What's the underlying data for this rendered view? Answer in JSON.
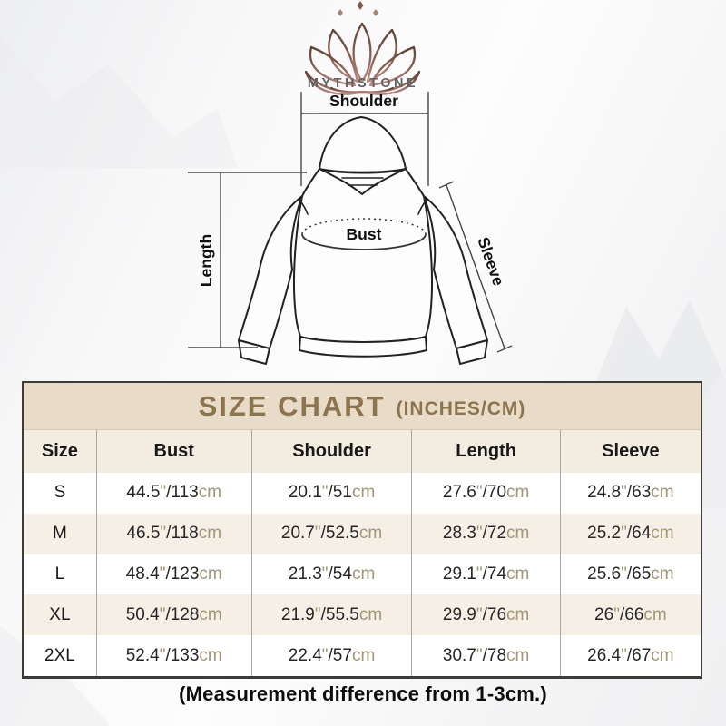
{
  "brand": {
    "name": "MYTHSTONE"
  },
  "diagram": {
    "labels": {
      "shoulder": "Shoulder",
      "length": "Length",
      "bust": "Bust",
      "sleeve": "Sleeve"
    }
  },
  "size_chart": {
    "title": "SIZE CHART",
    "title_suffix": "(INCHES/CM)",
    "unit": {
      "inch_mark": "\"",
      "separator": "/",
      "cm_label": "cm"
    }
  },
  "chart_data": {
    "type": "table",
    "title": "SIZE CHART (INCHES/CM)",
    "columns": [
      "Size",
      "Bust",
      "Shoulder",
      "Length",
      "Sleeve"
    ],
    "units": "inches/cm",
    "rows": [
      {
        "size": "S",
        "bust": {
          "in": 44.5,
          "cm": 113
        },
        "shoulder": {
          "in": 20.1,
          "cm": 51
        },
        "length": {
          "in": 27.6,
          "cm": 70
        },
        "sleeve": {
          "in": 24.8,
          "cm": 63
        }
      },
      {
        "size": "M",
        "bust": {
          "in": 46.5,
          "cm": 118
        },
        "shoulder": {
          "in": 20.7,
          "cm": 52.5
        },
        "length": {
          "in": 28.3,
          "cm": 72
        },
        "sleeve": {
          "in": 25.2,
          "cm": 64
        }
      },
      {
        "size": "L",
        "bust": {
          "in": 48.4,
          "cm": 123
        },
        "shoulder": {
          "in": 21.3,
          "cm": 54
        },
        "length": {
          "in": 29.1,
          "cm": 74
        },
        "sleeve": {
          "in": 25.6,
          "cm": 65
        }
      },
      {
        "size": "XL",
        "bust": {
          "in": 50.4,
          "cm": 128
        },
        "shoulder": {
          "in": 21.9,
          "cm": 55.5
        },
        "length": {
          "in": 29.9,
          "cm": 76
        },
        "sleeve": {
          "in": 26,
          "cm": 66
        }
      },
      {
        "size": "2XL",
        "bust": {
          "in": 52.4,
          "cm": 133
        },
        "shoulder": {
          "in": 22.4,
          "cm": 57
        },
        "length": {
          "in": 30.7,
          "cm": 78
        },
        "sleeve": {
          "in": 26.4,
          "cm": 67
        }
      }
    ]
  },
  "footnote": "(Measurement difference from 1-3cm.)",
  "colors": {
    "title_text": "#8c744e",
    "title_band_bg": "#e8dbc8",
    "header_row_bg": "#f3ece1",
    "alt_row_bg": "#f6efe6",
    "unit_text": "#a29676",
    "table_border": "#3e3c39",
    "lotus_top": "#5e4334",
    "lotus_bottom": "#b98b84"
  }
}
